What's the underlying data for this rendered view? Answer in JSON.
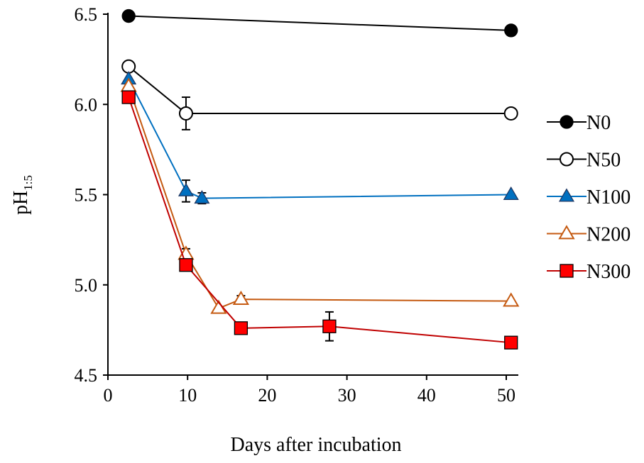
{
  "chart_data": {
    "type": "line",
    "title": "",
    "xlabel": "Days after incubation",
    "ylabel": "pH",
    "ylabel_subscript": "1:5",
    "xlim": [
      0,
      52
    ],
    "ylim": [
      4.5,
      6.5
    ],
    "xticks": [
      0,
      10,
      20,
      30,
      40,
      50
    ],
    "yticks": [
      "4.5",
      "5.0",
      "5.5",
      "6.0",
      "6.5"
    ],
    "grid": false,
    "legend_position": "right",
    "series": [
      {
        "name": "N0",
        "color": "#000000",
        "marker": "circle-filled",
        "fill": "#000000",
        "points": [
          {
            "x": 2.6,
            "y": 6.49
          },
          {
            "x": 50.6,
            "y": 6.41
          }
        ]
      },
      {
        "name": "N50",
        "color": "#000000",
        "marker": "circle-open",
        "fill": "#ffffff",
        "points": [
          {
            "x": 2.6,
            "y": 6.21
          },
          {
            "x": 9.8,
            "y": 5.95,
            "err": 0.09
          },
          {
            "x": 50.6,
            "y": 5.95
          }
        ]
      },
      {
        "name": "N100",
        "color": "#0070c0",
        "marker": "triangle-filled",
        "fill": "#0070c0",
        "points": [
          {
            "x": 2.6,
            "y": 6.14
          },
          {
            "x": 9.8,
            "y": 5.52,
            "err": 0.06
          },
          {
            "x": 11.8,
            "y": 5.48,
            "err": 0.03
          },
          {
            "x": 50.6,
            "y": 5.5
          }
        ]
      },
      {
        "name": "N200",
        "color": "#c55a11",
        "marker": "triangle-open",
        "fill": "#ffffff",
        "points": [
          {
            "x": 2.6,
            "y": 6.1
          },
          {
            "x": 9.8,
            "y": 5.17,
            "err": 0.03
          },
          {
            "x": 13.9,
            "y": 4.87
          },
          {
            "x": 16.7,
            "y": 4.92,
            "err": 0.02
          },
          {
            "x": 50.6,
            "y": 4.91
          }
        ]
      },
      {
        "name": "N300",
        "color": "#c00000",
        "marker": "square-filled",
        "fill": "#ff0000",
        "points": [
          {
            "x": 2.6,
            "y": 6.04
          },
          {
            "x": 9.8,
            "y": 5.11
          },
          {
            "x": 16.7,
            "y": 4.76
          },
          {
            "x": 27.8,
            "y": 4.77,
            "err": 0.08
          },
          {
            "x": 50.6,
            "y": 4.68
          }
        ]
      }
    ]
  }
}
